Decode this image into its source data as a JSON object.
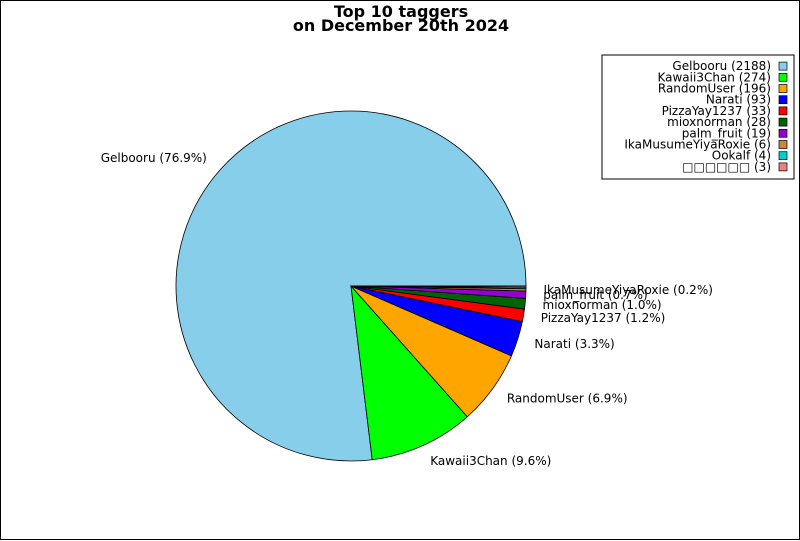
{
  "chart_data": {
    "type": "pie",
    "title": [
      "Top 10 taggers",
      "on December 20th 2024"
    ],
    "legend_position": "top-right",
    "slices": [
      {
        "name": "Gelbooru",
        "count": 2188,
        "legend": "Gelbooru (2188)",
        "label": "Gelbooru (76.9%)",
        "color": "#87ceeb"
      },
      {
        "name": "Kawaii3Chan",
        "count": 274,
        "legend": "Kawaii3Chan (274)",
        "label": "Kawaii3Chan (9.6%)",
        "color": "#00ff00"
      },
      {
        "name": "RandomUser",
        "count": 196,
        "legend": "RandomUser (196)",
        "label": "RandomUser (6.9%)",
        "color": "#ffa500"
      },
      {
        "name": "Narati",
        "count": 93,
        "legend": "Narati (93)",
        "label": "Narati (3.3%)",
        "color": "#0000ff"
      },
      {
        "name": "PizzaYay1237",
        "count": 33,
        "legend": "PizzaYay1237 (33)",
        "label": "PizzaYay1237 (1.2%)",
        "color": "#ff0000"
      },
      {
        "name": "mioxnorman",
        "count": 28,
        "legend": "mioxnorman (28)",
        "label": "mioxnorman (1.0%)",
        "color": "#006400"
      },
      {
        "name": "palm_fruit",
        "count": 19,
        "legend": "palm_fruit (19)",
        "label": "palm_fruit (0.7%)",
        "color": "#9400d3"
      },
      {
        "name": "IkaMusumeYiyaRoxie",
        "count": 6,
        "legend": "IkaMusumeYiyaRoxie (6)",
        "label": "IkaMusumeYiyaRoxie (0.2%)",
        "color": "#cd853f"
      },
      {
        "name": "Ookalf",
        "count": 4,
        "legend": "Ookalf (4)",
        "label": "",
        "color": "#00ced1"
      },
      {
        "name": "□□□□□□",
        "count": 3,
        "legend": "□□□□□□ (3)",
        "label": "",
        "color": "#f08080"
      }
    ]
  }
}
